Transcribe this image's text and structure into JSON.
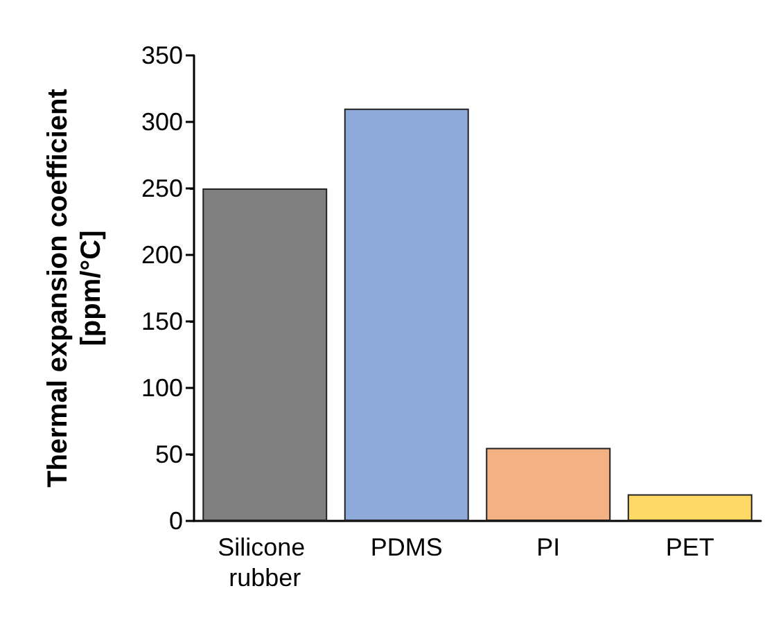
{
  "chart_data": {
    "type": "bar",
    "ylabel": "Thermal expansion coefficient\n[ppm/°C]",
    "categories": [
      "Silicone rubber",
      "PDMS",
      "PI",
      "PET"
    ],
    "values": [
      250,
      310,
      55,
      20
    ],
    "colors": [
      "#808080",
      "#8eaadb",
      "#f4b183",
      "#ffd966"
    ],
    "ylim": [
      0,
      350
    ],
    "yticks": [
      0,
      50,
      100,
      150,
      200,
      250,
      300,
      350
    ],
    "grid": false
  }
}
